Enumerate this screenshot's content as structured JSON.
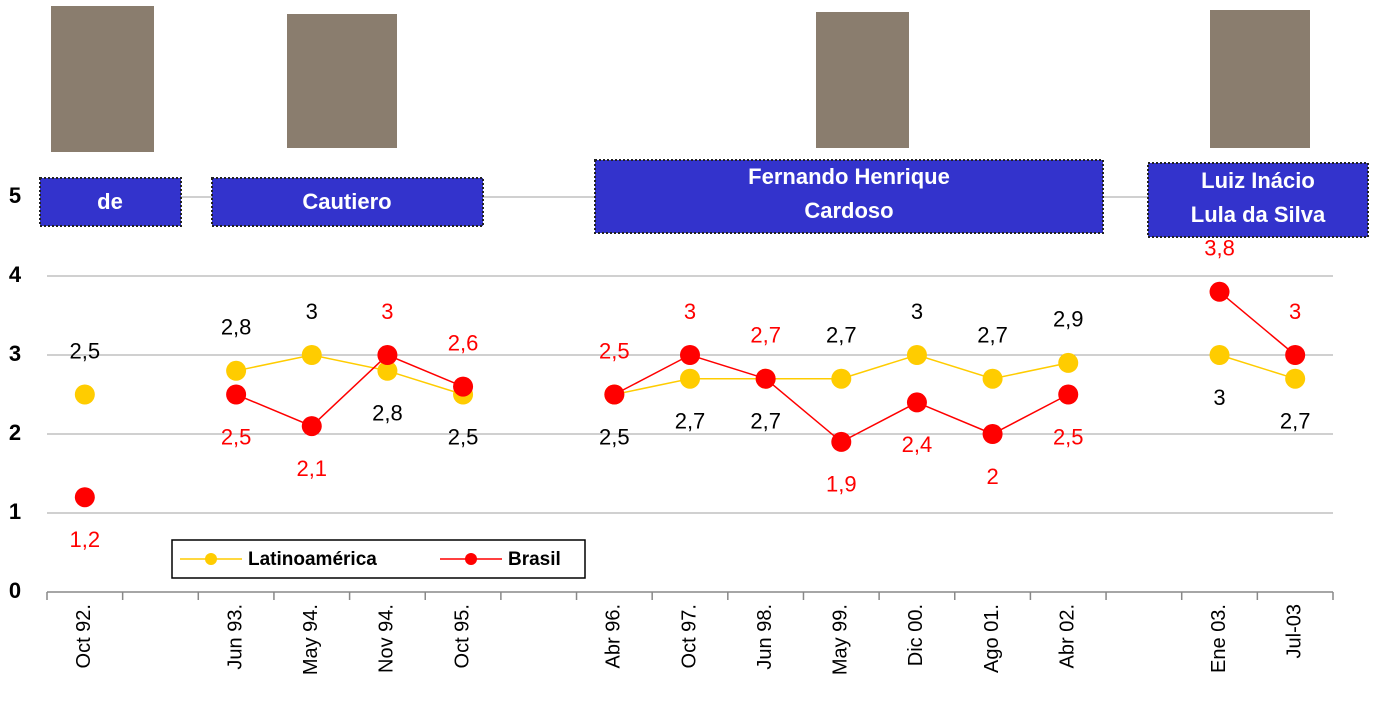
{
  "chart_data": {
    "type": "line",
    "categories": [
      "Oct 92.",
      null,
      "Jun 93.",
      "May 94.",
      "Nov  94.",
      "Oct 95.",
      null,
      "Abr 96.",
      "Oct 97.",
      "Jun 98.",
      "May 99.",
      "Dic 00.",
      "Ago 01.",
      "Abr 02.",
      null,
      "Ene 03.",
      "Jul-03"
    ],
    "series": [
      {
        "name": "Latinoamérica",
        "color": "#ffcc00",
        "label_color": "#000000",
        "values": [
          2.5,
          null,
          2.8,
          3,
          2.8,
          2.5,
          null,
          2.5,
          2.7,
          2.7,
          2.7,
          3,
          2.7,
          2.9,
          null,
          3,
          2.7
        ],
        "value_labels": [
          "2,5",
          null,
          "2,8",
          "3",
          "2,8",
          "2,5",
          null,
          "2,5",
          "2,7",
          "2,7",
          "2,7",
          "3",
          "2,7",
          "2,9",
          null,
          "3",
          "2,7"
        ]
      },
      {
        "name": "Brasil",
        "color": "#ff0000",
        "label_color": "#ff0000",
        "values": [
          1.2,
          null,
          2.5,
          2.1,
          3,
          2.6,
          null,
          2.5,
          3,
          2.7,
          1.9,
          2.4,
          2,
          2.5,
          null,
          3.8,
          3
        ],
        "value_labels": [
          "1,2",
          null,
          "2,5",
          "2,1",
          "3",
          "2,6",
          null,
          "2,5",
          "3",
          "2,7",
          "1,9",
          "2,4",
          "2",
          "2,5",
          null,
          "3,8",
          "3"
        ]
      }
    ],
    "ylim": [
      0,
      5
    ],
    "yticks": [
      0,
      1,
      2,
      3,
      4,
      5
    ],
    "grid": true,
    "annotations": [
      [
        "de"
      ],
      [
        "Cautiero"
      ],
      [
        "Fernando Henrique",
        "Cardoso"
      ],
      [
        "Luiz Inácio",
        "Lula da Silva"
      ]
    ]
  }
}
